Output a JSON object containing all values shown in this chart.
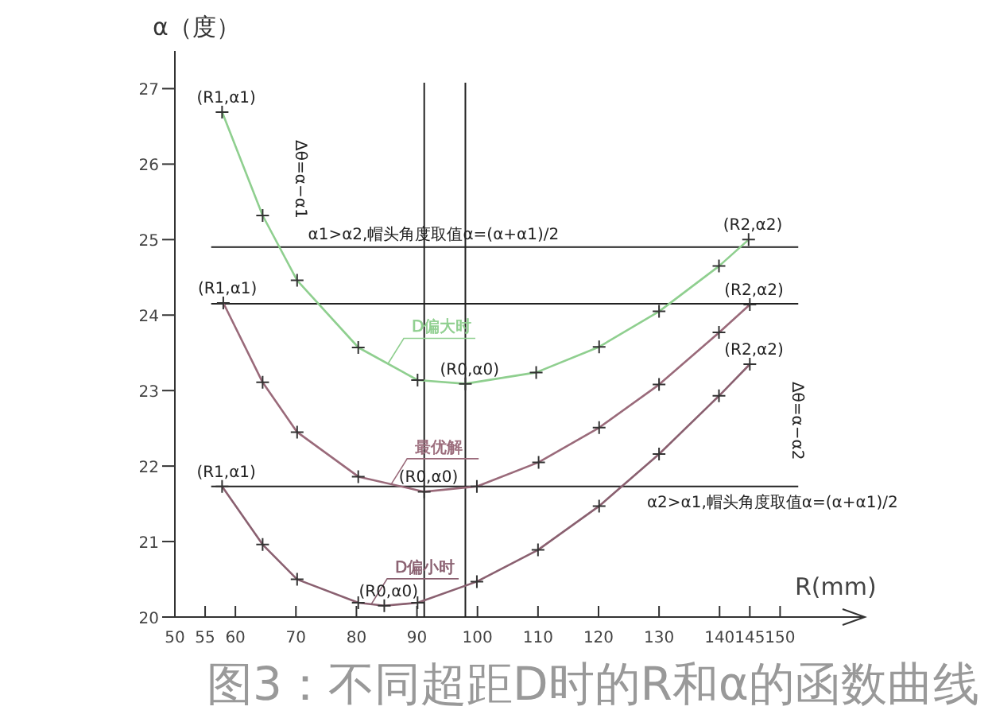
{
  "chart_data": {
    "type": "line",
    "title": "图3：不同超距D时的R和α的函数曲线",
    "xlabel": "R(mm)",
    "ylabel": "α（度）",
    "xlim": [
      50,
      164
    ],
    "ylim": [
      20,
      27.5
    ],
    "xticks": [
      50,
      55,
      60,
      70,
      80,
      90,
      100,
      110,
      120,
      130,
      140,
      145,
      150
    ],
    "yticks": [
      20,
      21,
      22,
      23,
      24,
      25,
      26,
      27
    ],
    "marker": "cross",
    "grid": false,
    "series": [
      {
        "name": "D偏大时",
        "color": "#8fcf8f",
        "x": [
          57.8,
          64.5,
          70.2,
          80.3,
          90.1,
          98.0,
          109.7,
          120.1,
          130,
          139.9,
          144.8
        ],
        "values": [
          26.69,
          25.32,
          24.46,
          23.57,
          23.14,
          23.09,
          23.24,
          23.58,
          24.05,
          24.65,
          25.0
        ]
      },
      {
        "name": "最优解",
        "color": "#9a6a7a",
        "x": [
          58.0,
          64.5,
          70.2,
          80.3,
          91.2,
          99.9,
          110.1,
          120.1,
          130,
          139.9,
          145
        ],
        "values": [
          24.16,
          23.11,
          22.45,
          21.86,
          21.66,
          21.73,
          22.05,
          22.51,
          23.08,
          23.77,
          24.14
        ]
      },
      {
        "name": "D偏小时",
        "color": "#8a6070",
        "x": [
          57.8,
          64.5,
          70.2,
          80.3,
          84.6,
          90.1,
          99.9,
          110,
          120.1,
          130,
          139.9,
          145
        ],
        "values": [
          21.73,
          20.96,
          20.5,
          20.19,
          20.15,
          20.19,
          20.47,
          20.89,
          21.47,
          22.16,
          22.93,
          23.35
        ]
      }
    ],
    "ref_lines": [
      {
        "axis": "y",
        "value": 24.9,
        "label": "α1>α2,帽头角度取值α=(α+α1)/2",
        "color": "#222222"
      },
      {
        "axis": "y",
        "value": 24.15,
        "color": "#222222"
      },
      {
        "axis": "y",
        "value": 21.73,
        "label": "α2>α1,帽头角度取值α=(α+α1)/2",
        "color": "#222222"
      },
      {
        "axis": "x",
        "value": 98,
        "color": "#222222"
      },
      {
        "axis": "x",
        "value": 91.2,
        "color": "#222222"
      }
    ],
    "annotations": [
      {
        "text": "(R1,α1)",
        "x": 57.8,
        "y": 26.69
      },
      {
        "text": "(R1,α1)",
        "x": 58.0,
        "y": 24.16
      },
      {
        "text": "(R1,α1)",
        "x": 57.8,
        "y": 21.73
      },
      {
        "text": "(R2,α2)",
        "x": 144.8,
        "y": 25.0
      },
      {
        "text": "(R2,α2)",
        "x": 145,
        "y": 24.14
      },
      {
        "text": "(R2,α2)",
        "x": 145,
        "y": 23.35
      },
      {
        "text": "(R0,α0)",
        "x": 98.0,
        "y": 23.09
      },
      {
        "text": "(R0,α0)",
        "x": 91.2,
        "y": 21.66
      },
      {
        "text": "(R0,α0)",
        "x": 84.6,
        "y": 20.15
      },
      "Δθ=α−α1",
      "Δθ=α−α2"
    ]
  }
}
